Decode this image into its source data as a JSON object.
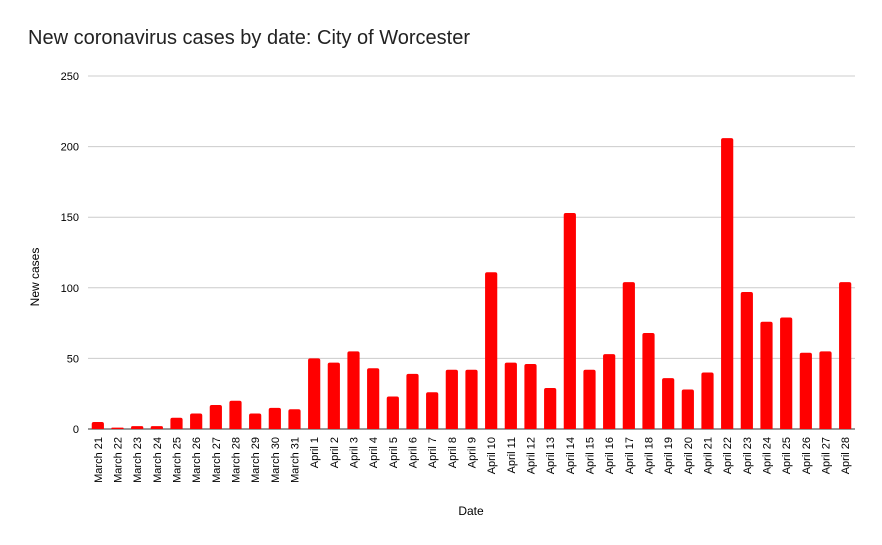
{
  "chart_data": {
    "type": "bar",
    "title": "New coronavirus cases by date: City of Worcester",
    "xlabel": "Date",
    "ylabel": "New cases",
    "ylim": [
      0,
      250
    ],
    "yticks": [
      "0",
      "50",
      "100",
      "150",
      "200",
      "250"
    ],
    "grid": true,
    "bar_color": "#ff0000",
    "categories": [
      "March 21",
      "March 22",
      "March 23",
      "March 24",
      "March 25",
      "March 26",
      "March 27",
      "March 28",
      "March 29",
      "March 30",
      "March 31",
      "April 1",
      "April 2",
      "April 3",
      "April 4",
      "April 5",
      "April 6",
      "April 7",
      "April 8",
      "April 9",
      "April 10",
      "April 11",
      "April 12",
      "April 13",
      "April 14",
      "April 15",
      "April 16",
      "April 17",
      "April 18",
      "April 19",
      "April 20",
      "April 21",
      "April 22",
      "April 23",
      "April 24",
      "April 25",
      "April 26",
      "April 27",
      "April 28"
    ],
    "values": [
      5,
      1,
      2,
      2,
      8,
      11,
      17,
      20,
      11,
      15,
      14,
      50,
      47,
      55,
      43,
      23,
      39,
      26,
      42,
      42,
      111,
      47,
      46,
      29,
      153,
      42,
      53,
      104,
      68,
      36,
      28,
      40,
      206,
      97,
      76,
      79,
      54,
      55,
      104
    ]
  }
}
